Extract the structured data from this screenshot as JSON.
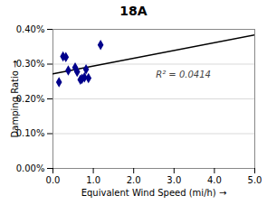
{
  "chart_data": {
    "type": "scatter",
    "title": "18A",
    "xlabel": "Equivalent Wind Speed (mi/h)",
    "ylabel": "Damping Ratio",
    "xlim": [
      0,
      5.0
    ],
    "ylim": [
      0,
      0.004
    ],
    "xticks": [
      {
        "value": 0.0,
        "label": "0.0"
      },
      {
        "value": 1.0,
        "label": "1.0"
      },
      {
        "value": 2.0,
        "label": "2.0"
      },
      {
        "value": 3.0,
        "label": "3.0"
      },
      {
        "value": 4.0,
        "label": "4.0"
      },
      {
        "value": 5.0,
        "label": "5.0"
      }
    ],
    "yticks": [
      {
        "value": 0.0,
        "label": "0.00%"
      },
      {
        "value": 0.001,
        "label": "0.10%"
      },
      {
        "value": 0.002,
        "label": "0.20%"
      },
      {
        "value": 0.003,
        "label": "0.30%"
      },
      {
        "value": 0.004,
        "label": "0.40%"
      }
    ],
    "grid": "y",
    "series": [
      {
        "type": "scatter",
        "color": "#00008B",
        "marker": "diamond",
        "x": [
          0.15,
          0.25,
          0.32,
          0.38,
          0.55,
          0.6,
          0.68,
          0.72,
          0.78,
          0.82,
          0.88,
          1.18
        ],
        "values": [
          0.00248,
          0.00322,
          0.0032,
          0.00282,
          0.0029,
          0.00278,
          0.00255,
          0.00258,
          0.00262,
          0.00285,
          0.0026,
          0.00355
        ]
      },
      {
        "type": "line",
        "color": "#000000",
        "line_style": "solid",
        "x": [
          0,
          5.0
        ],
        "values": [
          0.00272,
          0.00384
        ]
      }
    ],
    "annotations": [
      {
        "text": "R² = 0.0414",
        "x": 2.55,
        "y": 0.0027
      }
    ]
  }
}
